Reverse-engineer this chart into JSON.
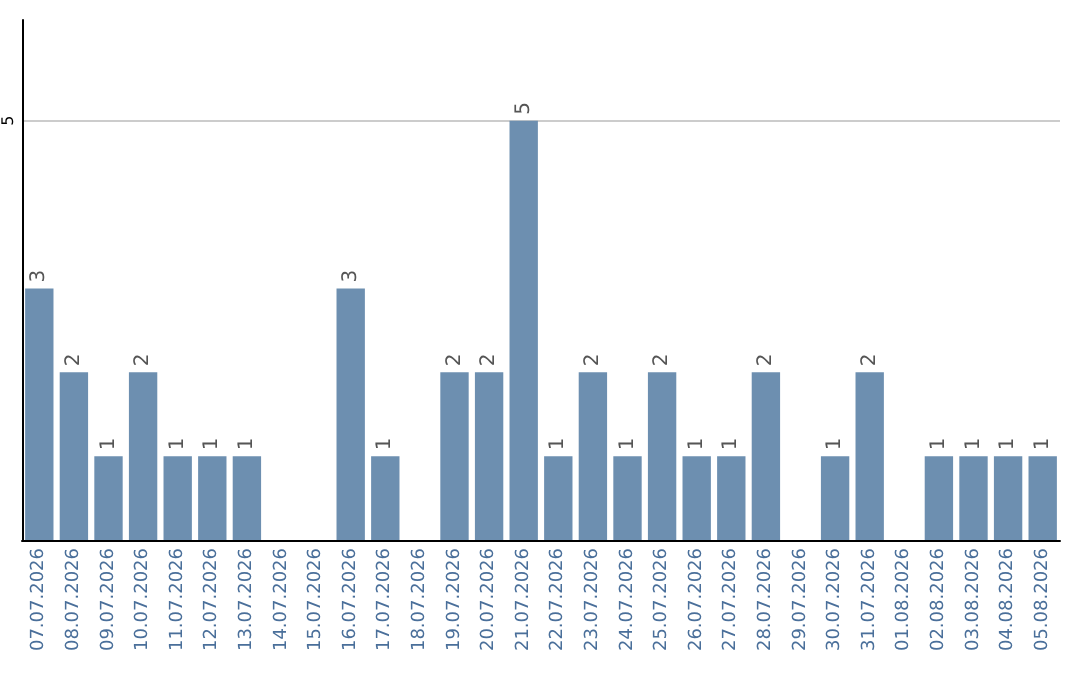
{
  "chart_data": {
    "type": "bar",
    "categories": [
      "07.07.2026",
      "08.07.2026",
      "09.07.2026",
      "10.07.2026",
      "11.07.2026",
      "12.07.2026",
      "13.07.2026",
      "14.07.2026",
      "15.07.2026",
      "16.07.2026",
      "17.07.2026",
      "18.07.2026",
      "19.07.2026",
      "20.07.2026",
      "21.07.2026",
      "22.07.2026",
      "23.07.2026",
      "24.07.2026",
      "25.07.2026",
      "26.07.2026",
      "27.07.2026",
      "28.07.2026",
      "29.07.2026",
      "30.07.2026",
      "31.07.2026",
      "01.08.2026",
      "02.08.2026",
      "03.08.2026",
      "04.08.2026",
      "05.08.2026"
    ],
    "values": [
      3,
      2,
      1,
      2,
      1,
      1,
      1,
      0,
      0,
      3,
      1,
      0,
      2,
      2,
      5,
      1,
      2,
      1,
      2,
      1,
      1,
      2,
      0,
      1,
      2,
      0,
      1,
      1,
      1,
      1
    ],
    "value_labels": [
      "3",
      "2",
      "1",
      "2",
      "1",
      "1",
      "1",
      null,
      null,
      "3",
      "1",
      null,
      "2",
      "2",
      "5",
      "1",
      "2",
      "1",
      "2",
      "1",
      "1",
      "2",
      null,
      "1",
      "2",
      null,
      "1",
      "1",
      "1",
      "1"
    ],
    "color": "#6d8fb0",
    "ylim": [
      0,
      6.2
    ],
    "yticks": [
      5
    ],
    "grid": "y"
  }
}
